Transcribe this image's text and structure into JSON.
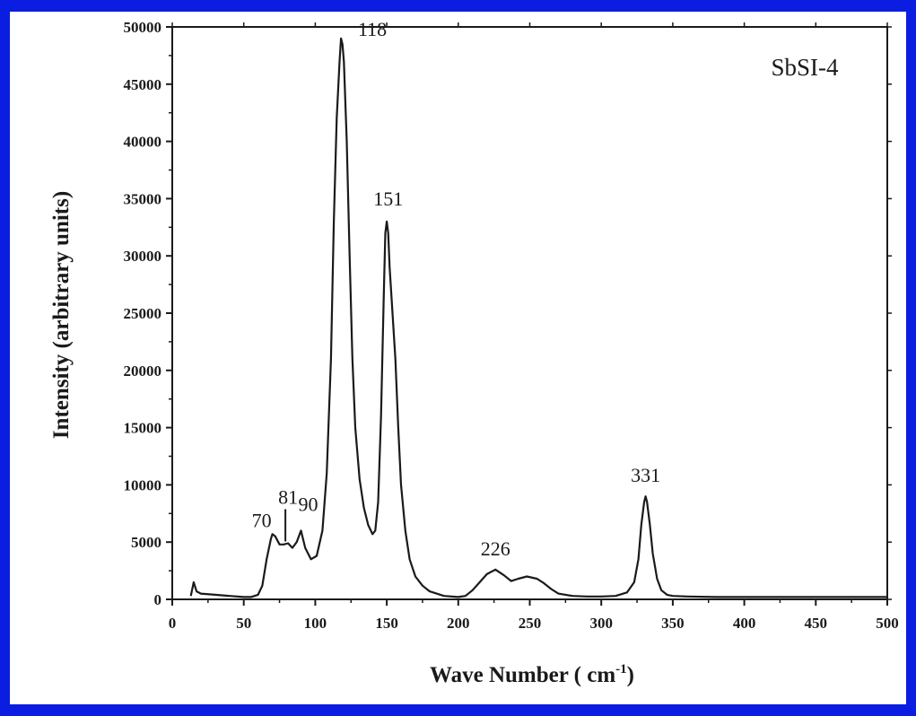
{
  "chart_data": {
    "type": "line",
    "title": "",
    "annotation_label": "SbSI-4",
    "xlabel_main": "Wave Number ( cm",
    "xlabel_sup": "-1",
    "xlabel_close": ")",
    "ylabel": "Intensity (arbitrary units)",
    "xlim": [
      0,
      500
    ],
    "ylim": [
      0,
      50000
    ],
    "x_ticks": [
      0,
      50,
      100,
      150,
      200,
      250,
      300,
      350,
      400,
      450,
      500
    ],
    "y_ticks": [
      0,
      5000,
      10000,
      15000,
      20000,
      25000,
      30000,
      35000,
      40000,
      45000,
      50000
    ],
    "x_tick_labels": [
      "0",
      "50",
      "100",
      "150",
      "200",
      "250",
      "300",
      "350",
      "400",
      "450",
      "500"
    ],
    "y_tick_labels": [
      "0",
      "5000",
      "10000",
      "15000",
      "20000",
      "25000",
      "30000",
      "35000",
      "40000",
      "45000",
      "50000"
    ],
    "grid": false,
    "line_color": "#1a1a1a",
    "frame_color": "#0a1de0",
    "series": [
      {
        "x": [
          13,
          15,
          17,
          20,
          30,
          40,
          50,
          55,
          60,
          63,
          66,
          69,
          70,
          72,
          75,
          78,
          81,
          84,
          87,
          90,
          93,
          97,
          101,
          105,
          108,
          111,
          113,
          115,
          117,
          118,
          119,
          120,
          122,
          124,
          126,
          128,
          131,
          134,
          137,
          140,
          142,
          144,
          146,
          148,
          149,
          150,
          151,
          152,
          153,
          154,
          156,
          158,
          160,
          163,
          166,
          170,
          175,
          180,
          190,
          200,
          205,
          210,
          215,
          220,
          226,
          232,
          237,
          242,
          248,
          255,
          260,
          265,
          270,
          280,
          290,
          300,
          310,
          318,
          323,
          326,
          328,
          330,
          331,
          332,
          334,
          336,
          339,
          342,
          346,
          350,
          360,
          380,
          400,
          450,
          500
        ],
        "y": [
          300,
          1500,
          700,
          500,
          400,
          300,
          200,
          200,
          400,
          1200,
          3500,
          5300,
          5700,
          5500,
          4800,
          4800,
          4900,
          4500,
          5000,
          6000,
          4500,
          3500,
          3800,
          6000,
          11000,
          21000,
          33000,
          42000,
          47000,
          49000,
          48500,
          47000,
          40000,
          30000,
          21000,
          15000,
          10500,
          8000,
          6500,
          5700,
          6000,
          8500,
          16000,
          27000,
          32000,
          33000,
          32000,
          29000,
          27000,
          25000,
          21000,
          15000,
          10000,
          6000,
          3500,
          2000,
          1200,
          700,
          300,
          200,
          300,
          800,
          1500,
          2200,
          2600,
          2100,
          1600,
          1800,
          2000,
          1800,
          1400,
          900,
          500,
          300,
          250,
          250,
          300,
          600,
          1500,
          3500,
          6500,
          8500,
          9000,
          8500,
          6500,
          4000,
          1800,
          800,
          400,
          300,
          250,
          200,
          200,
          200,
          200
        ]
      }
    ],
    "peak_labels": [
      {
        "text": "118",
        "x": 118,
        "y": 49000
      },
      {
        "text": "151",
        "x": 151,
        "y": 33000
      },
      {
        "text": "70",
        "x": 70,
        "y": 5700
      },
      {
        "text": "81",
        "x": 81,
        "y": 4900
      },
      {
        "text": "90",
        "x": 90,
        "y": 6000
      },
      {
        "text": "226",
        "x": 226,
        "y": 2600
      },
      {
        "text": "331",
        "x": 331,
        "y": 9000
      }
    ]
  }
}
